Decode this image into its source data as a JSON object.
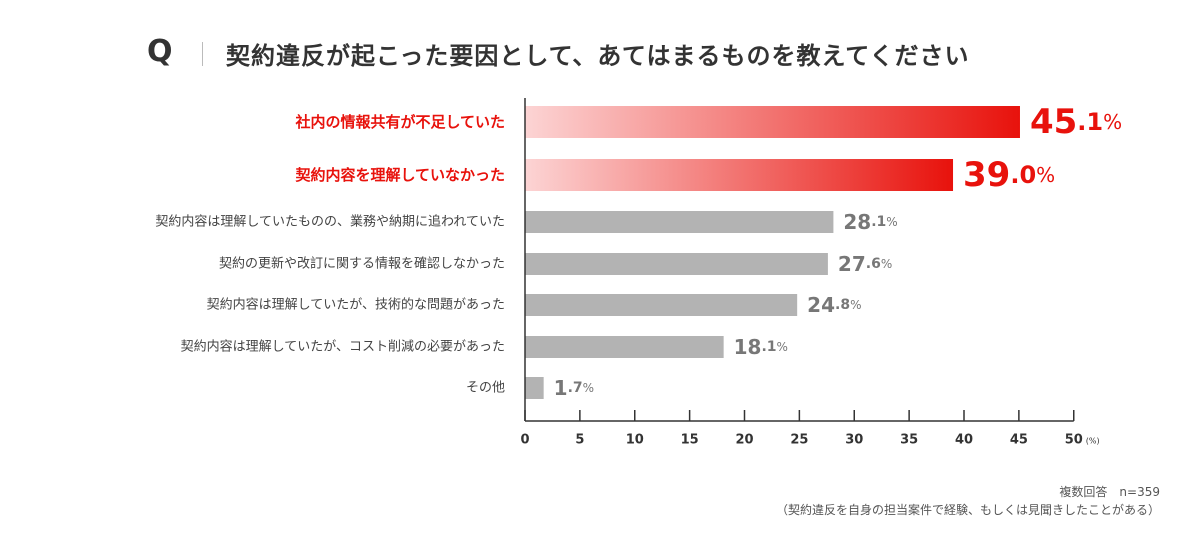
{
  "header": {
    "q_label": "Q",
    "question": "契約違反が起こった要因として、あてはまるものを教えてください"
  },
  "chart_data": {
    "type": "bar",
    "orientation": "horizontal",
    "title": "契約違反が起こった要因として、あてはまるものを教えてください",
    "categories": [
      "社内の情報共有が不足していた",
      "契約内容を理解していなかった",
      "契約内容は理解していたものの、業務や納期に追われていた",
      "契約の更新や改訂に関する情報を確認しなかった",
      "契約内容は理解していたが、技術的な問題があった",
      "契約内容は理解していたが、コスト削減の必要があった",
      "その他"
    ],
    "values": [
      45.1,
      39.0,
      28.1,
      27.6,
      24.8,
      18.1,
      1.7
    ],
    "value_labels": [
      {
        "main": "45",
        "dec": ".1",
        "unit": "%"
      },
      {
        "main": "39",
        "dec": ".0",
        "unit": "%"
      },
      {
        "main": "28",
        "dec": ".1",
        "unit": "%"
      },
      {
        "main": "27",
        "dec": ".6",
        "unit": "%"
      },
      {
        "main": "24",
        "dec": ".8",
        "unit": "%"
      },
      {
        "main": "18",
        "dec": ".1",
        "unit": "%"
      },
      {
        "main": "1",
        "dec": ".7",
        "unit": "%"
      }
    ],
    "highlighted": [
      true,
      true,
      false,
      false,
      false,
      false,
      false
    ],
    "xlim": [
      0,
      50
    ],
    "xticks": [
      "0",
      "5",
      "10",
      "15",
      "20",
      "25",
      "30",
      "35",
      "40",
      "45",
      "50"
    ],
    "x_unit": "(%)",
    "grid": false
  },
  "colors": {
    "highlight_start": "#fcd4d4",
    "highlight_end": "#e8120c",
    "highlight_text": "#e8120c",
    "bar_gray": "#b3b3b3",
    "value_gray": "#777777",
    "label_gray": "#444444",
    "axis": "#333333"
  },
  "footnote": {
    "sample": "複数回答　n=359",
    "scope": "（契約違反を自身の担当案件で経験、もしくは見聞きしたことがある）"
  }
}
